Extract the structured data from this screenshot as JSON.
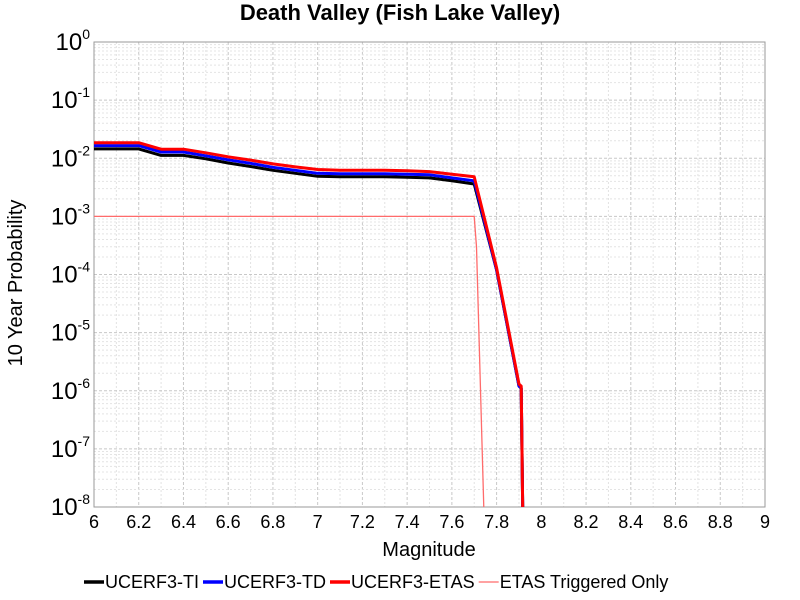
{
  "chart_data": {
    "type": "line",
    "title": "Death Valley (Fish Lake Valley)",
    "xlabel": "Magnitude",
    "ylabel": "10 Year Probability",
    "xlim": [
      6,
      9
    ],
    "ylim": [
      1e-08,
      1
    ],
    "yscale": "log",
    "grid": true,
    "legend_position": "bottom",
    "x_ticks": [
      "6",
      "6.2",
      "6.4",
      "6.6",
      "6.8",
      "7",
      "7.2",
      "7.4",
      "7.6",
      "7.8",
      "8",
      "8.2",
      "8.4",
      "8.6",
      "8.8",
      "9"
    ],
    "y_ticks": [
      {
        "base": "10",
        "exp": "0"
      },
      {
        "base": "10",
        "exp": "-1"
      },
      {
        "base": "10",
        "exp": "-2"
      },
      {
        "base": "10",
        "exp": "-3"
      },
      {
        "base": "10",
        "exp": "-4"
      },
      {
        "base": "10",
        "exp": "-5"
      },
      {
        "base": "10",
        "exp": "-6"
      },
      {
        "base": "10",
        "exp": "-7"
      },
      {
        "base": "10",
        "exp": "-8"
      }
    ],
    "series": [
      {
        "name": "UCERF3-TI",
        "color": "#000000",
        "width": 3,
        "x": [
          6.0,
          6.2,
          6.3,
          6.4,
          6.5,
          6.6,
          6.7,
          6.8,
          6.9,
          7.0,
          7.1,
          7.2,
          7.3,
          7.4,
          7.5,
          7.6,
          7.7,
          7.8,
          7.9,
          7.91,
          7.92
        ],
        "y": [
          0.0145,
          0.0145,
          0.0112,
          0.0112,
          0.0098,
          0.0083,
          0.0072,
          0.0062,
          0.0055,
          0.0049,
          0.0048,
          0.0048,
          0.0048,
          0.0047,
          0.0046,
          0.0041,
          0.0036,
          0.00012,
          1.2e-06,
          1.1e-06,
          1e-09
        ]
      },
      {
        "name": "UCERF3-TD",
        "color": "#0000ff",
        "width": 3,
        "x": [
          6.0,
          6.2,
          6.3,
          6.4,
          6.5,
          6.6,
          6.7,
          6.8,
          6.9,
          7.0,
          7.1,
          7.2,
          7.3,
          7.4,
          7.5,
          7.6,
          7.7,
          7.8,
          7.9,
          7.91,
          7.92
        ],
        "y": [
          0.0165,
          0.0165,
          0.0128,
          0.0128,
          0.011,
          0.0094,
          0.0082,
          0.007,
          0.0062,
          0.0055,
          0.0054,
          0.0054,
          0.0054,
          0.0053,
          0.0052,
          0.0046,
          0.0041,
          0.00012,
          1.2e-06,
          1.1e-06,
          1e-09
        ]
      },
      {
        "name": "UCERF3-ETAS",
        "color": "#ff0000",
        "width": 3,
        "x": [
          6.0,
          6.2,
          6.3,
          6.4,
          6.5,
          6.6,
          6.7,
          6.8,
          6.9,
          7.0,
          7.1,
          7.2,
          7.3,
          7.4,
          7.5,
          7.6,
          7.7,
          7.8,
          7.9,
          7.91,
          7.92
        ],
        "y": [
          0.0185,
          0.0185,
          0.0143,
          0.0143,
          0.0124,
          0.0106,
          0.0093,
          0.008,
          0.0071,
          0.0064,
          0.0062,
          0.0062,
          0.0062,
          0.0061,
          0.0059,
          0.0053,
          0.0048,
          0.00013,
          1.3e-06,
          1.2e-06,
          1e-09
        ]
      },
      {
        "name": "ETAS Triggered Only",
        "color": "#ff6b6b",
        "width": 1.3,
        "x": [
          6.0,
          7.7,
          7.71,
          7.75
        ],
        "y": [
          0.001,
          0.001,
          0.0003,
          1e-09
        ]
      }
    ]
  }
}
